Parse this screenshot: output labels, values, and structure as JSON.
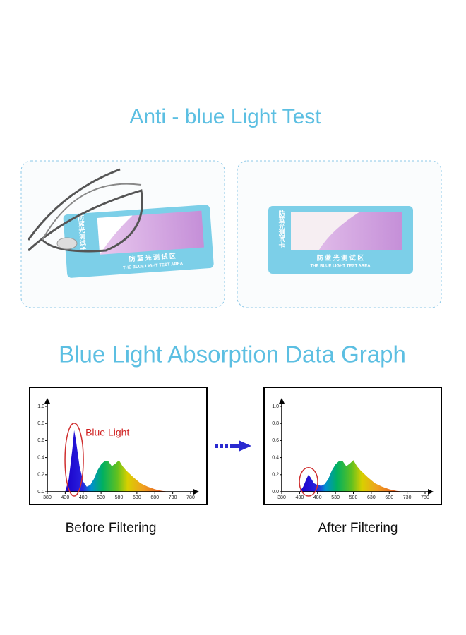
{
  "title": "Anti - blue Light Test",
  "cards": [
    {
      "label": "防蓝光测试卡",
      "area": "防 蓝 光 测 试 区",
      "area_en": "THE BLUE LIGHT TEST AREA"
    },
    {
      "label": "防蓝光测试卡",
      "area": "防 蓝 光 测 试 区",
      "area_en": "THE BLUE LIGHT TEST AREA"
    }
  ],
  "section_title": "Blue Light Absorption Data Graph",
  "chart_data": [
    {
      "type": "area",
      "caption": "Before Filtering",
      "annotation": "Blue Light",
      "x": [
        430,
        440,
        450,
        455,
        460,
        470,
        480,
        490,
        500,
        510,
        520,
        530,
        540,
        550,
        560,
        570,
        580,
        590,
        600,
        620,
        640,
        660,
        680,
        700,
        720
      ],
      "values": [
        0,
        0.15,
        0.5,
        0.72,
        0.6,
        0.3,
        0.12,
        0.06,
        0.08,
        0.15,
        0.25,
        0.32,
        0.36,
        0.36,
        0.3,
        0.33,
        0.37,
        0.3,
        0.25,
        0.17,
        0.1,
        0.06,
        0.03,
        0.01,
        0
      ],
      "xlim": [
        380,
        780
      ],
      "ylim": [
        0,
        1
      ],
      "xticks": [
        380,
        430,
        480,
        530,
        580,
        630,
        680,
        730,
        780
      ],
      "yticks": [
        {
          "value": 0,
          "label": "0.0"
        },
        0.2,
        0.4,
        0.6,
        0.8,
        {
          "value": 1,
          "label": "1.0"
        }
      ]
    },
    {
      "type": "area",
      "caption": "After Filtering",
      "x": [
        430,
        440,
        450,
        455,
        460,
        470,
        480,
        490,
        500,
        510,
        520,
        530,
        540,
        550,
        560,
        570,
        580,
        590,
        600,
        620,
        640,
        660,
        680,
        700,
        720
      ],
      "values": [
        0,
        0.06,
        0.16,
        0.2,
        0.17,
        0.1,
        0.08,
        0.07,
        0.09,
        0.15,
        0.25,
        0.32,
        0.36,
        0.36,
        0.3,
        0.33,
        0.37,
        0.3,
        0.25,
        0.17,
        0.1,
        0.06,
        0.03,
        0.01,
        0
      ],
      "xlim": [
        380,
        780
      ],
      "ylim": [
        0,
        1
      ],
      "xticks": [
        380,
        430,
        480,
        530,
        580,
        630,
        680,
        730,
        780
      ],
      "yticks": [
        {
          "value": 0,
          "label": "0.0"
        },
        0.2,
        0.4,
        0.6,
        0.8,
        {
          "value": 1,
          "label": "1.0"
        }
      ]
    }
  ]
}
